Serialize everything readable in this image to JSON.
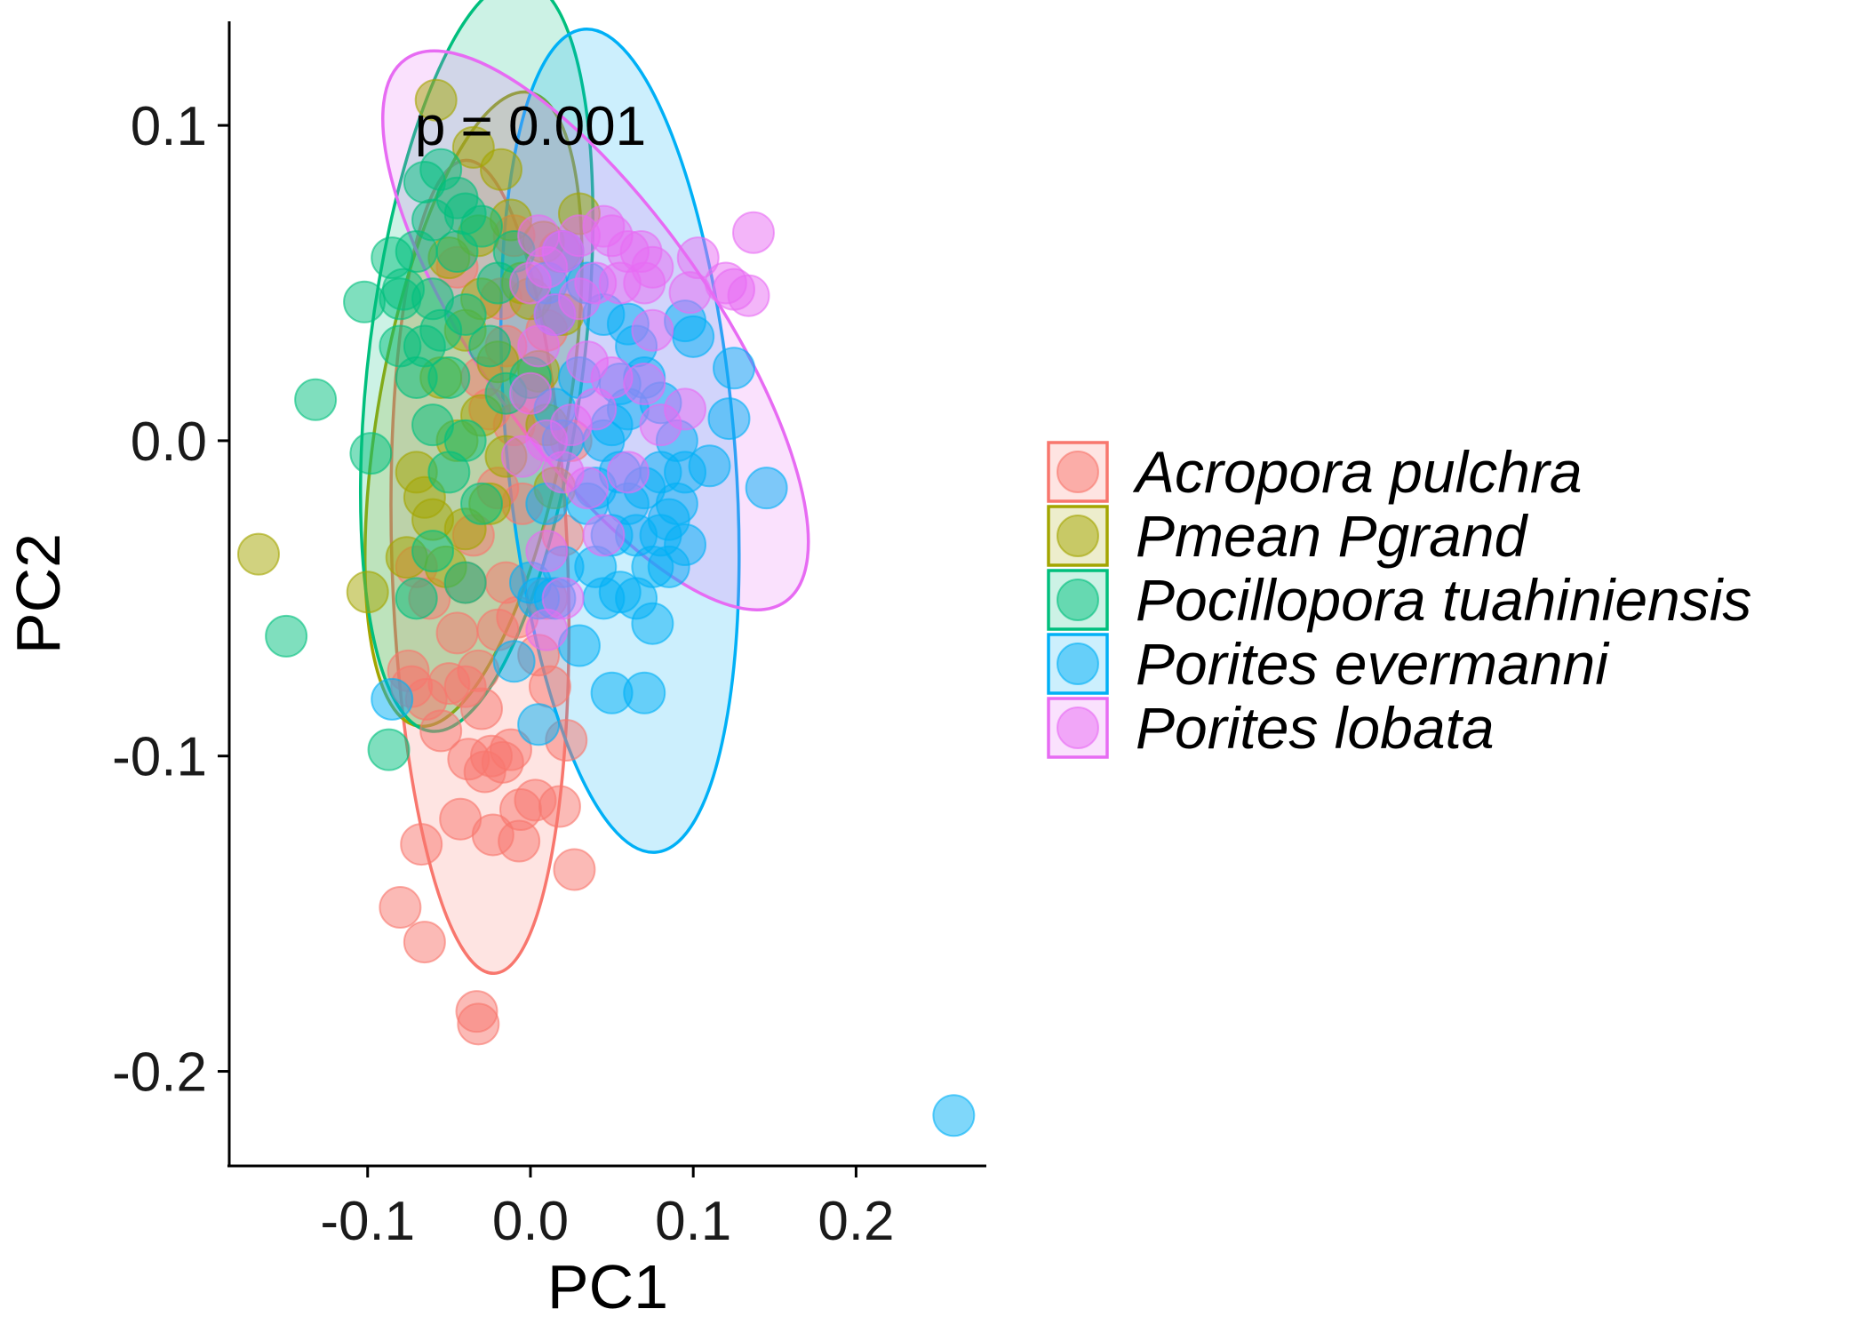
{
  "chart_data": {
    "type": "scatter",
    "title": "",
    "xlabel": "PC1",
    "ylabel": "PC2",
    "xlim": [
      -0.185,
      0.28
    ],
    "ylim": [
      -0.23,
      0.133
    ],
    "x_ticks": [
      -0.1,
      0.0,
      0.1,
      0.2
    ],
    "x_tick_labels": [
      "-0.1",
      "0.0",
      "0.1",
      "0.2"
    ],
    "y_ticks": [
      -0.2,
      -0.1,
      0.0,
      0.1
    ],
    "y_tick_labels": [
      "-0.2",
      "-0.1",
      "0.0",
      "0.1"
    ],
    "grid": false,
    "annotation": "p = 0.001",
    "annotation_xy": [
      0.0,
      0.1
    ],
    "legend_position": "right",
    "series": [
      {
        "name": "Acropora pulchra",
        "color": "#F8766D",
        "ellipse": {
          "cx": -0.031,
          "cy": -0.04,
          "rx": 0.054,
          "ry": 0.129,
          "angle": -2
        },
        "points": [
          [
            -0.033,
            -0.181
          ],
          [
            -0.032,
            -0.185
          ],
          [
            -0.065,
            -0.159
          ],
          [
            -0.08,
            -0.148
          ],
          [
            -0.067,
            -0.128
          ],
          [
            -0.043,
            -0.12
          ],
          [
            -0.023,
            -0.125
          ],
          [
            -0.007,
            -0.127
          ],
          [
            0.027,
            -0.136
          ],
          [
            -0.006,
            -0.117
          ],
          [
            0.018,
            -0.116
          ],
          [
            0.003,
            -0.114
          ],
          [
            -0.028,
            -0.105
          ],
          [
            -0.024,
            -0.1
          ],
          [
            -0.017,
            -0.102
          ],
          [
            -0.038,
            -0.101
          ],
          [
            -0.055,
            -0.092
          ],
          [
            -0.064,
            -0.082
          ],
          [
            -0.075,
            -0.073
          ],
          [
            -0.05,
            -0.077
          ],
          [
            -0.04,
            -0.078
          ],
          [
            -0.032,
            -0.073
          ],
          [
            -0.073,
            -0.078
          ],
          [
            0.022,
            -0.095
          ],
          [
            -0.012,
            -0.098
          ],
          [
            -0.03,
            -0.085
          ],
          [
            -0.045,
            -0.061
          ],
          [
            -0.02,
            -0.06
          ],
          [
            -0.008,
            -0.056
          ],
          [
            0.005,
            -0.068
          ],
          [
            0.012,
            -0.078
          ],
          [
            -0.062,
            -0.05
          ],
          [
            -0.015,
            -0.045
          ],
          [
            -0.035,
            -0.03
          ],
          [
            -0.02,
            -0.015
          ],
          [
            -0.005,
            -0.02
          ],
          [
            -0.01,
            0.005
          ],
          [
            -0.025,
            0.01
          ],
          [
            0.002,
            0.015
          ],
          [
            -0.015,
            0.03
          ],
          [
            0.02,
            -0.03
          ],
          [
            0.01,
            -0.05
          ],
          [
            -0.04,
            -0.045
          ],
          [
            -0.018,
            0.045
          ],
          [
            -0.01,
            0.065
          ],
          [
            -0.03,
            0.02
          ],
          [
            0.025,
            0.0
          ],
          [
            -0.07,
            -0.04
          ],
          [
            0.018,
            0.06
          ],
          [
            -0.045,
            0.055
          ],
          [
            0.01,
            0.035
          ]
        ]
      },
      {
        "name": "Pmean Pgrand",
        "color": "#A3A500",
        "ellipse": {
          "cx": -0.035,
          "cy": 0.01,
          "rx": 0.058,
          "ry": 0.102,
          "angle": 10
        },
        "points": [
          [
            -0.058,
            0.108
          ],
          [
            -0.167,
            -0.036
          ],
          [
            -0.1,
            -0.048
          ],
          [
            -0.076,
            -0.037
          ],
          [
            -0.052,
            -0.04
          ],
          [
            -0.065,
            -0.018
          ],
          [
            -0.07,
            -0.01
          ],
          [
            -0.035,
            0.093
          ],
          [
            -0.018,
            0.086
          ],
          [
            0.03,
            0.072
          ],
          [
            0.008,
            0.063
          ],
          [
            -0.012,
            0.07
          ],
          [
            -0.032,
            0.065
          ],
          [
            -0.05,
            0.058
          ],
          [
            -0.03,
            0.045
          ],
          [
            0.0,
            0.045
          ],
          [
            -0.04,
            0.035
          ],
          [
            -0.02,
            0.025
          ],
          [
            -0.055,
            0.02
          ],
          [
            0.005,
            0.022
          ],
          [
            -0.03,
            0.008
          ],
          [
            -0.045,
            0.0
          ],
          [
            -0.015,
            -0.005
          ],
          [
            0.01,
            0.005
          ],
          [
            -0.06,
            -0.025
          ],
          [
            -0.025,
            -0.02
          ],
          [
            -0.04,
            -0.028
          ],
          [
            0.015,
            -0.015
          ],
          [
            -0.005,
            0.05
          ],
          [
            0.02,
            0.04
          ]
        ]
      },
      {
        "name": "Pocillopora tuahiniensis",
        "color": "#00BF7D",
        "ellipse": {
          "cx": -0.033,
          "cy": 0.027,
          "rx": 0.066,
          "ry": 0.12,
          "angle": 7
        },
        "points": [
          [
            -0.15,
            -0.062
          ],
          [
            -0.132,
            0.013
          ],
          [
            -0.102,
            0.044
          ],
          [
            -0.098,
            -0.004
          ],
          [
            -0.087,
            -0.098
          ],
          [
            -0.055,
            0.086
          ],
          [
            -0.065,
            0.082
          ],
          [
            -0.045,
            0.077
          ],
          [
            -0.04,
            0.072
          ],
          [
            -0.03,
            0.068
          ],
          [
            -0.06,
            0.07
          ],
          [
            -0.07,
            0.06
          ],
          [
            -0.078,
            0.048
          ],
          [
            -0.08,
            0.045
          ],
          [
            -0.06,
            0.045
          ],
          [
            -0.065,
            0.03
          ],
          [
            -0.055,
            0.035
          ],
          [
            -0.04,
            0.04
          ],
          [
            -0.02,
            0.05
          ],
          [
            -0.01,
            0.06
          ],
          [
            -0.05,
            0.02
          ],
          [
            -0.07,
            0.02
          ],
          [
            -0.06,
            0.005
          ],
          [
            -0.05,
            -0.01
          ],
          [
            -0.06,
            -0.035
          ],
          [
            -0.04,
            -0.045
          ],
          [
            -0.07,
            -0.05
          ],
          [
            -0.03,
            -0.02
          ],
          [
            -0.025,
            0.03
          ],
          [
            -0.045,
            0.06
          ],
          [
            -0.08,
            0.03
          ],
          [
            -0.04,
            0.0
          ],
          [
            -0.015,
            0.015
          ],
          [
            0.0,
            0.02
          ],
          [
            -0.085,
            0.058
          ]
        ]
      },
      {
        "name": "Porites evermanni",
        "color": "#00B0F6",
        "ellipse": {
          "cx": 0.055,
          "cy": 0.0,
          "rx": 0.07,
          "ry": 0.131,
          "angle": -5
        },
        "points": [
          [
            0.26,
            -0.214
          ],
          [
            0.145,
            -0.015
          ],
          [
            0.125,
            0.023
          ],
          [
            0.122,
            0.007
          ],
          [
            0.1,
            0.033
          ],
          [
            0.095,
            0.038
          ],
          [
            0.11,
            -0.008
          ],
          [
            0.09,
            -0.02
          ],
          [
            0.08,
            -0.03
          ],
          [
            0.095,
            -0.033
          ],
          [
            0.085,
            -0.025
          ],
          [
            0.07,
            -0.015
          ],
          [
            0.06,
            -0.02
          ],
          [
            0.055,
            -0.01
          ],
          [
            0.05,
            -0.03
          ],
          [
            0.055,
            -0.048
          ],
          [
            0.065,
            -0.05
          ],
          [
            0.075,
            -0.058
          ],
          [
            0.07,
            -0.08
          ],
          [
            0.05,
            -0.08
          ],
          [
            0.03,
            -0.065
          ],
          [
            -0.085,
            -0.082
          ],
          [
            0.015,
            -0.05
          ],
          [
            0.02,
            -0.04
          ],
          [
            0.04,
            -0.015
          ],
          [
            0.045,
            0.0
          ],
          [
            0.06,
            0.01
          ],
          [
            0.065,
            0.03
          ],
          [
            0.07,
            0.02
          ],
          [
            0.06,
            0.037
          ],
          [
            0.045,
            0.04
          ],
          [
            0.03,
            0.02
          ],
          [
            0.035,
            0.05
          ],
          [
            0.015,
            0.04
          ],
          [
            0.02,
            0.0
          ],
          [
            0.035,
            -0.02
          ],
          [
            0.05,
            0.005
          ],
          [
            0.08,
            -0.01
          ],
          [
            0.09,
            0.0
          ],
          [
            0.04,
            -0.04
          ],
          [
            0.0,
            -0.045
          ],
          [
            0.08,
            0.012
          ],
          [
            0.055,
            0.018
          ],
          [
            0.075,
            -0.04
          ],
          [
            0.01,
            -0.02
          ],
          [
            0.015,
            0.01
          ],
          [
            0.045,
            -0.05
          ],
          [
            0.065,
            -0.03
          ],
          [
            0.085,
            -0.04
          ],
          [
            0.095,
            -0.01
          ],
          [
            0.02,
            0.06
          ],
          [
            0.01,
            0.05
          ],
          [
            0.005,
            -0.05
          ],
          [
            0.005,
            -0.09
          ],
          [
            -0.01,
            -0.07
          ]
        ]
      },
      {
        "name": "Porites lobata",
        "color": "#E76BF3",
        "ellipse": {
          "cx": 0.04,
          "cy": 0.035,
          "rx": 0.072,
          "ry": 0.105,
          "angle": -35
        },
        "points": [
          [
            0.137,
            0.066
          ],
          [
            0.134,
            0.046
          ],
          [
            0.125,
            0.048
          ],
          [
            0.12,
            0.05
          ],
          [
            0.103,
            0.058
          ],
          [
            0.098,
            0.047
          ],
          [
            0.075,
            0.055
          ],
          [
            0.07,
            0.05
          ],
          [
            0.068,
            0.06
          ],
          [
            0.06,
            0.06
          ],
          [
            0.05,
            0.065
          ],
          [
            0.045,
            0.068
          ],
          [
            0.03,
            0.065
          ],
          [
            0.02,
            0.06
          ],
          [
            0.01,
            0.055
          ],
          [
            0.005,
            0.065
          ],
          [
            0.0,
            0.05
          ],
          [
            0.015,
            0.04
          ],
          [
            0.03,
            0.045
          ],
          [
            0.035,
            0.025
          ],
          [
            0.05,
            0.02
          ],
          [
            0.04,
            0.01
          ],
          [
            0.025,
            0.005
          ],
          [
            0.01,
            0.0
          ],
          [
            0.02,
            -0.01
          ],
          [
            0.035,
            -0.015
          ],
          [
            0.045,
            -0.03
          ],
          [
            0.02,
            -0.05
          ],
          [
            0.01,
            -0.06
          ],
          [
            0.095,
            0.01
          ],
          [
            0.08,
            0.005
          ],
          [
            0.07,
            0.018
          ],
          [
            0.075,
            0.035
          ],
          [
            0.055,
            0.05
          ],
          [
            0.04,
            0.05
          ],
          [
            0.005,
            0.03
          ],
          [
            0.0,
            0.015
          ],
          [
            -0.005,
            -0.005
          ],
          [
            0.01,
            -0.035
          ],
          [
            0.06,
            -0.01
          ]
        ]
      }
    ]
  }
}
